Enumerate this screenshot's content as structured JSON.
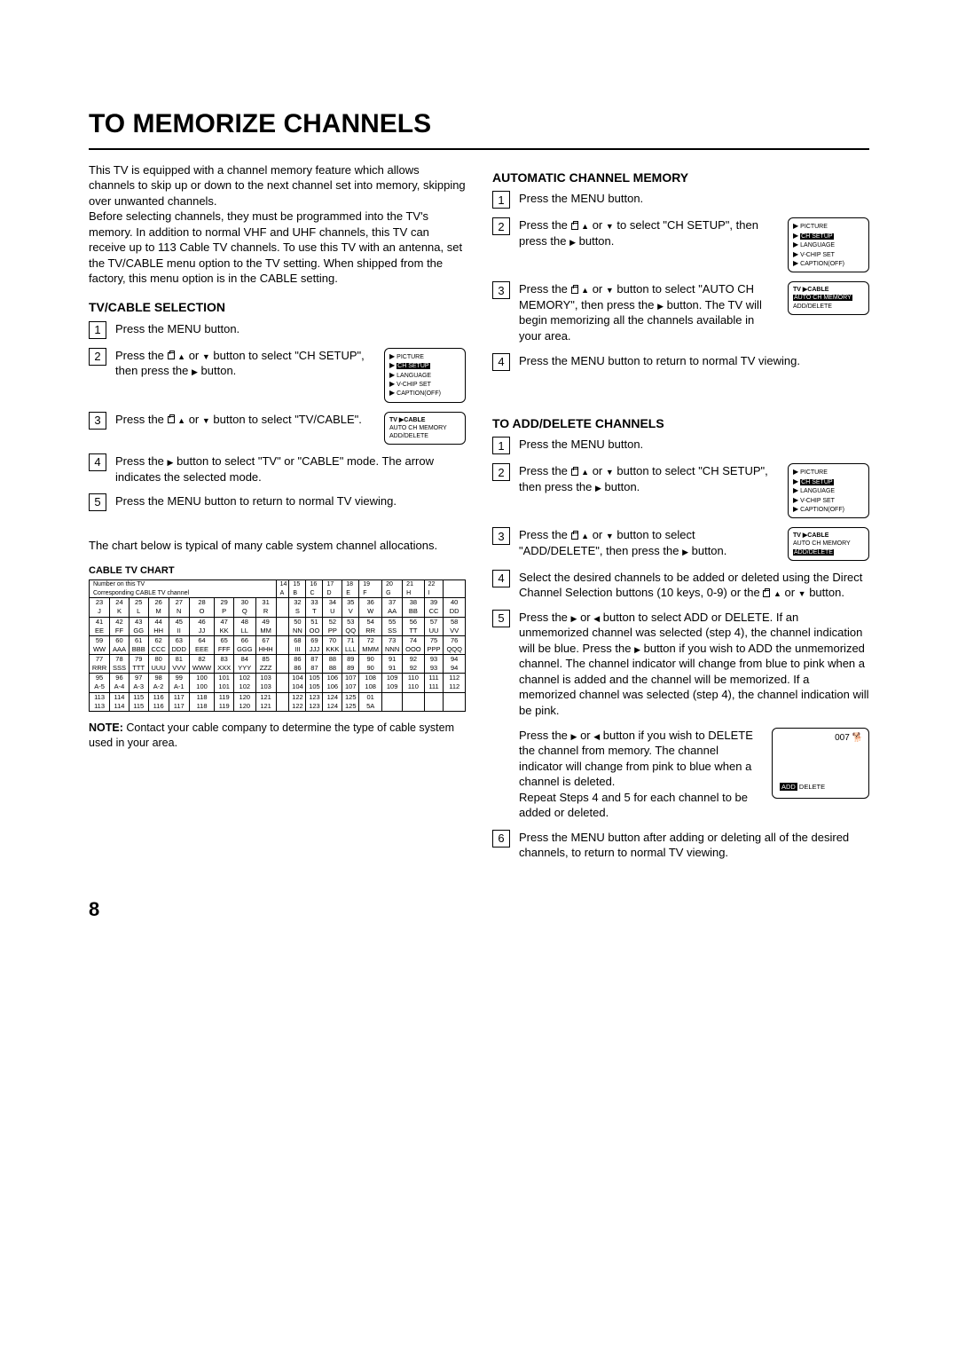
{
  "title": "TO MEMORIZE CHANNELS",
  "intro": "This TV is equipped with a channel memory feature which allows channels to skip up or down to the next channel set into memory, skipping over unwanted channels.\nBefore selecting channels, they must be programmed into the TV's memory. In addition to normal VHF and UHF channels, this TV can receive up to 113 Cable TV channels. To use this TV with an antenna, set the TV/CABLE menu option to the TV setting. When shipped from the factory, this menu option is in the CABLE setting.",
  "tvCable": {
    "heading": "TV/CABLE SELECTION",
    "steps": [
      "Press the MENU button.",
      "Press the __TV__ __UP__ or __DN__ button to select \"CH SETUP\", then press the __R__ button.",
      "Press the __TV__ __UP__ or __DN__ button to select \"TV/CABLE\".",
      "Press the __R__ button to select \"TV\" or \"CABLE\" mode. The arrow indicates the selected mode.",
      "Press the MENU button to return to normal TV viewing."
    ],
    "menu1": [
      "PICTURE",
      "CH SETUP",
      "LANGUAGE",
      "V-CHIP SET",
      "CAPTION(OFF)"
    ],
    "menu1_hl": 1,
    "menu2_top": "TV ▶CABLE",
    "menu2_lines": [
      "AUTO CH MEMORY",
      "ADD/DELETE"
    ]
  },
  "chartIntro": "The chart below is typical of many cable system channel allocations.",
  "chartTitle": "CABLE TV CHART",
  "tableHdr1": "Number on this TV",
  "tableHdr2": "Corresponding CABLE TV channel",
  "table": [
    [
      "23",
      "24",
      "25",
      "26",
      "27",
      "28",
      "29",
      "30",
      "31",
      "",
      "32",
      "33",
      "34",
      "35",
      "36",
      "37",
      "38",
      "39",
      "40"
    ],
    [
      "J",
      "K",
      "L",
      "M",
      "N",
      "O",
      "P",
      "Q",
      "R",
      "",
      "S",
      "T",
      "U",
      "V",
      "W",
      "AA",
      "BB",
      "CC",
      "DD"
    ],
    [
      "41",
      "42",
      "43",
      "44",
      "45",
      "46",
      "47",
      "48",
      "49",
      "",
      "50",
      "51",
      "52",
      "53",
      "54",
      "55",
      "56",
      "57",
      "58"
    ],
    [
      "EE",
      "FF",
      "GG",
      "HH",
      "II",
      "JJ",
      "KK",
      "LL",
      "MM",
      "",
      "NN",
      "OO",
      "PP",
      "QQ",
      "RR",
      "SS",
      "TT",
      "UU",
      "VV"
    ],
    [
      "59",
      "60",
      "61",
      "62",
      "63",
      "64",
      "65",
      "66",
      "67",
      "",
      "68",
      "69",
      "70",
      "71",
      "72",
      "73",
      "74",
      "75",
      "76"
    ],
    [
      "WW",
      "AAA",
      "BBB",
      "CCC",
      "DDD",
      "EEE",
      "FFF",
      "GGG",
      "HHH",
      "",
      "III",
      "JJJ",
      "KKK",
      "LLL",
      "MMM",
      "NNN",
      "OOO",
      "PPP",
      "QQQ"
    ],
    [
      "77",
      "78",
      "79",
      "80",
      "81",
      "82",
      "83",
      "84",
      "85",
      "",
      "86",
      "87",
      "88",
      "89",
      "90",
      "91",
      "92",
      "93",
      "94"
    ],
    [
      "RRR",
      "SSS",
      "TTT",
      "UUU",
      "VVV",
      "WWW",
      "XXX",
      "YYY",
      "ZZZ",
      "",
      "86",
      "87",
      "88",
      "89",
      "90",
      "91",
      "92",
      "93",
      "94"
    ],
    [
      "95",
      "96",
      "97",
      "98",
      "99",
      "100",
      "101",
      "102",
      "103",
      "",
      "104",
      "105",
      "106",
      "107",
      "108",
      "109",
      "110",
      "111",
      "112"
    ],
    [
      "A-5",
      "A-4",
      "A-3",
      "A-2",
      "A-1",
      "100",
      "101",
      "102",
      "103",
      "",
      "104",
      "105",
      "106",
      "107",
      "108",
      "109",
      "110",
      "111",
      "112"
    ],
    [
      "113",
      "114",
      "115",
      "116",
      "117",
      "118",
      "119",
      "120",
      "121",
      "",
      "122",
      "123",
      "124",
      "125",
      "01",
      "",
      "",
      "",
      ""
    ],
    [
      "113",
      "114",
      "115",
      "116",
      "117",
      "118",
      "119",
      "120",
      "121",
      "",
      "122",
      "123",
      "124",
      "125",
      "5A",
      "",
      "",
      "",
      ""
    ]
  ],
  "tableTop": [
    "",
    "",
    "",
    "",
    "",
    "",
    "",
    "",
    "",
    "",
    "14",
    "15",
    "16",
    "17",
    "18",
    "19",
    "20",
    "21",
    "22"
  ],
  "tableTop2": [
    "",
    "",
    "",
    "",
    "",
    "",
    "",
    "",
    "",
    "",
    "A",
    "B",
    "C",
    "D",
    "E",
    "F",
    "G",
    "H",
    "I"
  ],
  "note": "NOTE: Contact your cable company to determine the type of cable system used in your area.",
  "auto": {
    "heading": "AUTOMATIC CHANNEL MEMORY",
    "steps": [
      "Press the MENU button.",
      "Press the __TV__ __UP__ or __DN__ to select \"CH SETUP\", then press the __R__ button.",
      "Press the __TV__ __UP__ or __DN__ button to select \"AUTO CH MEMORY\", then press the __R__ button. The TV will begin memorizing all the channels available in your area.",
      "Press the MENU button to return to normal TV viewing."
    ],
    "menu1": [
      "PICTURE",
      "CH SETUP",
      "LANGUAGE",
      "V-CHIP SET",
      "CAPTION(OFF)"
    ],
    "menu1_hl": 1,
    "menu2_top": "TV ▶CABLE",
    "menu2_lines": [
      "AUTO CH MEMORY",
      "ADD/DELETE"
    ],
    "menu2_hl": 0
  },
  "addDel": {
    "heading": "TO ADD/DELETE CHANNELS",
    "steps": [
      "Press the MENU button.",
      "Press the __TV__ __UP__ or __DN__ button to select \"CH SETUP\", then press the __R__ button.",
      "Press the __TV__ __UP__ or __DN__ button to select \"ADD/DELETE\", then press the __R__ button.",
      "Select the desired channels to be added or deleted using the Direct Channel Selection buttons (10 keys, 0-9) or the __TV__ __UP__ or __DN__ button.",
      "Press the __R__ or __L__ button to select ADD or DELETE. If an unmemorized channel was selected (step 4), the channel indication will be blue. Press the __R__ button if you wish to ADD the unmemorized channel. The channel indicator will change from blue to pink when a channel is added and the channel will be memorized. If a memorized channel was selected (step 4), the channel indication will be pink.",
      "Press the __R__ or __L__ button if you wish to DELETE the channel from memory. The channel indicator will change from pink to blue when a channel is deleted.\nRepeat Steps 4 and 5 for each channel to be added or deleted.",
      "Press the MENU button after adding or deleting all of the desired channels, to return to normal TV viewing."
    ],
    "menu1": [
      "PICTURE",
      "CH SETUP",
      "LANGUAGE",
      "V-CHIP SET",
      "CAPTION(OFF)"
    ],
    "menu1_hl": 1,
    "menu2_top": "TV ▶CABLE",
    "menu2_lines": [
      "AUTO CH MEMORY",
      "ADD/DELETE"
    ],
    "menu2_hl": 1,
    "addbox_ch": "007",
    "addbox_line": "ADD DELETE"
  },
  "pageNum": "8"
}
